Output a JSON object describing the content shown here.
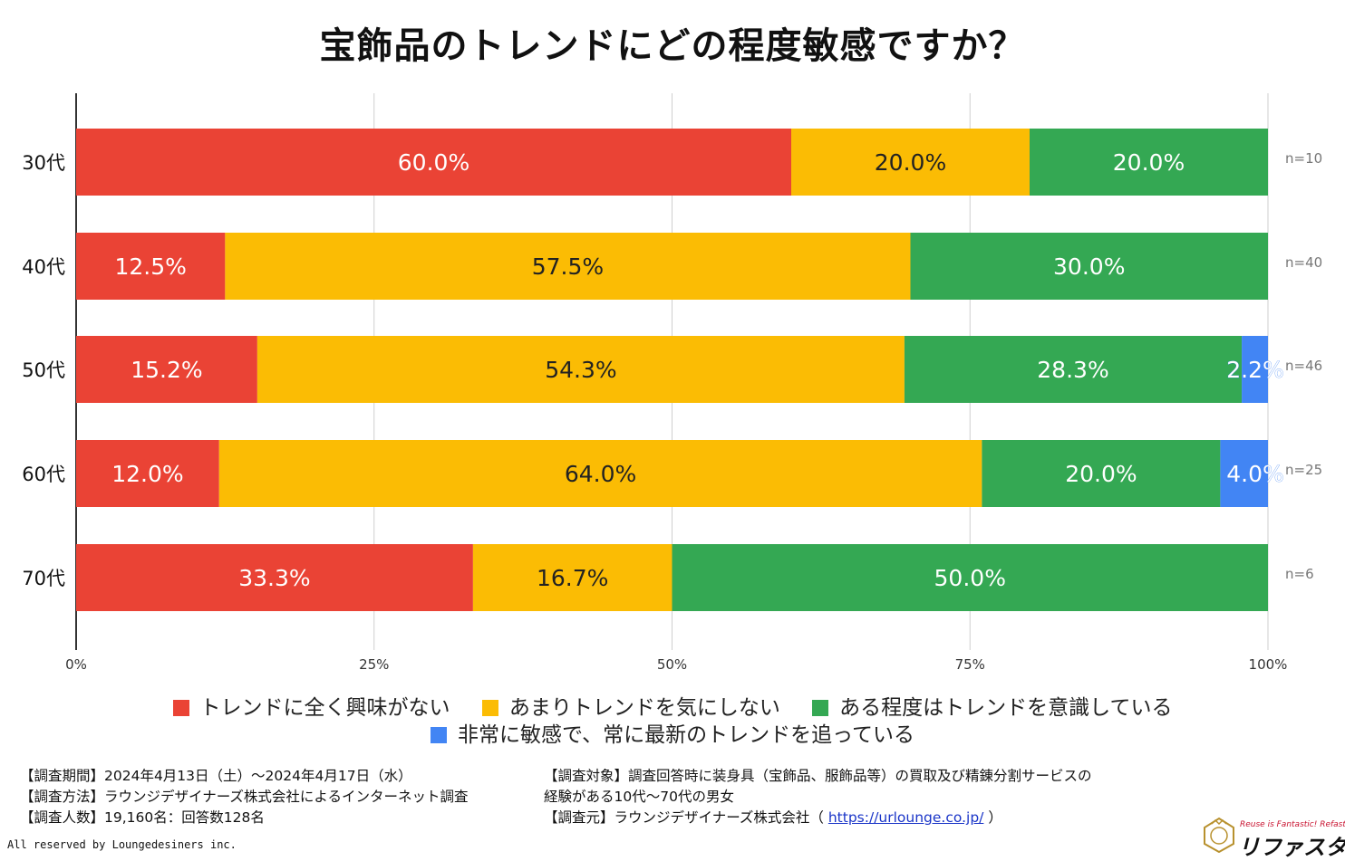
{
  "title": "宝飾品のトレンドにどの程度敏感ですか？",
  "chart_data": {
    "type": "bar",
    "orientation": "horizontal",
    "stacked": true,
    "title": "宝飾品のトレンドにどの程度敏感ですか？",
    "categories": [
      "30代",
      "40代",
      "50代",
      "60代",
      "70代"
    ],
    "sample_sizes": [
      "n=10",
      "n=40",
      "n=46",
      "n=25",
      "n=6"
    ],
    "xlim": [
      0,
      100
    ],
    "x_ticks": [
      "0%",
      "25%",
      "50%",
      "75%",
      "100%"
    ],
    "grid": true,
    "legend_position": "bottom",
    "series": [
      {
        "name": "トレンドに全く興味がない",
        "color": "#ea4335",
        "values": [
          60.0,
          12.5,
          15.2,
          12.0,
          33.3
        ],
        "labels": [
          "60.0%",
          "12.5%",
          "15.2%",
          "12.0%",
          "33.3%"
        ]
      },
      {
        "name": "あまりトレンドを気にしない",
        "color": "#fbbc04",
        "values": [
          20.0,
          57.5,
          54.3,
          64.0,
          16.7
        ],
        "labels": [
          "20.0%",
          "57.5%",
          "54.3%",
          "64.0%",
          "16.7%"
        ]
      },
      {
        "name": "ある程度はトレンドを意識している",
        "color": "#34a853",
        "values": [
          20.0,
          30.0,
          28.3,
          20.0,
          50.0
        ],
        "labels": [
          "20.0%",
          "30.0%",
          "28.3%",
          "20.0%",
          "50.0%"
        ]
      },
      {
        "name": "非常に敏感で、常に最新のトレンドを追っている",
        "color": "#4285f4",
        "values": [
          0,
          0,
          2.2,
          4.0,
          0
        ],
        "labels": [
          "",
          "",
          "2.2%",
          "4.0%",
          ""
        ]
      }
    ]
  },
  "legend": {
    "items": [
      {
        "label": "トレンドに全く興味がない",
        "color": "#ea4335"
      },
      {
        "label": "あまりトレンドを気にしない",
        "color": "#fbbc04"
      },
      {
        "label": "ある程度はトレンドを意識している",
        "color": "#34a853"
      },
      {
        "label": "非常に敏感で、常に最新のトレンドを追っている",
        "color": "#4285f4"
      }
    ]
  },
  "footer": {
    "left": [
      "【調査期間】2024年4月13日（土）～2024年4月17日（水）",
      "【調査方法】ラウンジデザイナーズ株式会社によるインターネット調査",
      "【調査人数】19,160名：回答数128名"
    ],
    "right_line1": "【調査対象】調査回答時に装身具（宝飾品、服飾品等）の買取及び精錬分割サービスの",
    "right_line2": "経験がある10代～70代の男女",
    "source_prefix": "【調査元】ラウンジデザイナーズ株式会社（",
    "source_url": "https://urlounge.co.jp/",
    "source_suffix": "）",
    "copyright": "All reserved by Loungedesiners inc.",
    "brand_tagline": "Reuse is Fantastic! Refasta",
    "brand_name": "リファスタ"
  }
}
